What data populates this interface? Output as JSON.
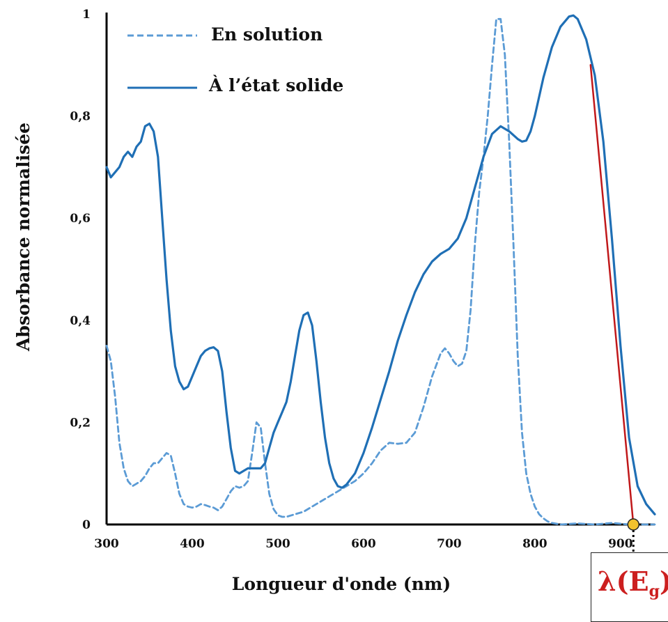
{
  "chart_data": {
    "type": "line",
    "title": "",
    "xlabel": "Longueur d'onde (nm)",
    "ylabel": "Absorbance normalisée",
    "xlim": [
      300,
      940
    ],
    "ylim": [
      0,
      1
    ],
    "x_ticks": [
      300,
      400,
      500,
      600,
      700,
      800,
      900
    ],
    "y_ticks": [
      {
        "value": 0,
        "label": "0"
      },
      {
        "value": 0.2,
        "label": "0,2"
      },
      {
        "value": 0.4,
        "label": "0,4"
      },
      {
        "value": 0.6,
        "label": "0,6"
      },
      {
        "value": 0.8,
        "label": "0,8"
      },
      {
        "value": 1,
        "label": "1"
      }
    ],
    "grid": false,
    "legend_position": "top-left",
    "series": [
      {
        "name": "En solution",
        "style": "dashed",
        "color": "#5b9bd5",
        "points": [
          [
            300,
            0.35
          ],
          [
            305,
            0.32
          ],
          [
            310,
            0.25
          ],
          [
            315,
            0.16
          ],
          [
            320,
            0.11
          ],
          [
            325,
            0.085
          ],
          [
            330,
            0.075
          ],
          [
            335,
            0.08
          ],
          [
            340,
            0.085
          ],
          [
            345,
            0.095
          ],
          [
            350,
            0.11
          ],
          [
            355,
            0.12
          ],
          [
            360,
            0.12
          ],
          [
            365,
            0.13
          ],
          [
            370,
            0.14
          ],
          [
            375,
            0.135
          ],
          [
            380,
            0.1
          ],
          [
            385,
            0.06
          ],
          [
            390,
            0.04
          ],
          [
            395,
            0.035
          ],
          [
            400,
            0.033
          ],
          [
            405,
            0.035
          ],
          [
            410,
            0.04
          ],
          [
            415,
            0.038
          ],
          [
            420,
            0.035
          ],
          [
            425,
            0.033
          ],
          [
            430,
            0.028
          ],
          [
            435,
            0.035
          ],
          [
            440,
            0.05
          ],
          [
            445,
            0.065
          ],
          [
            450,
            0.075
          ],
          [
            455,
            0.072
          ],
          [
            460,
            0.075
          ],
          [
            465,
            0.085
          ],
          [
            470,
            0.14
          ],
          [
            475,
            0.2
          ],
          [
            480,
            0.19
          ],
          [
            485,
            0.12
          ],
          [
            490,
            0.06
          ],
          [
            495,
            0.03
          ],
          [
            500,
            0.018
          ],
          [
            505,
            0.015
          ],
          [
            510,
            0.015
          ],
          [
            520,
            0.02
          ],
          [
            530,
            0.025
          ],
          [
            540,
            0.035
          ],
          [
            550,
            0.045
          ],
          [
            560,
            0.055
          ],
          [
            570,
            0.065
          ],
          [
            580,
            0.075
          ],
          [
            590,
            0.085
          ],
          [
            600,
            0.1
          ],
          [
            610,
            0.12
          ],
          [
            620,
            0.145
          ],
          [
            630,
            0.16
          ],
          [
            640,
            0.158
          ],
          [
            650,
            0.16
          ],
          [
            660,
            0.18
          ],
          [
            670,
            0.23
          ],
          [
            680,
            0.29
          ],
          [
            690,
            0.335
          ],
          [
            695,
            0.345
          ],
          [
            700,
            0.335
          ],
          [
            705,
            0.32
          ],
          [
            710,
            0.31
          ],
          [
            715,
            0.315
          ],
          [
            720,
            0.34
          ],
          [
            725,
            0.42
          ],
          [
            730,
            0.55
          ],
          [
            735,
            0.65
          ],
          [
            740,
            0.72
          ],
          [
            745,
            0.8
          ],
          [
            750,
            0.9
          ],
          [
            755,
            0.99
          ],
          [
            760,
            0.99
          ],
          [
            765,
            0.92
          ],
          [
            770,
            0.75
          ],
          [
            775,
            0.55
          ],
          [
            780,
            0.33
          ],
          [
            785,
            0.18
          ],
          [
            790,
            0.1
          ],
          [
            795,
            0.06
          ],
          [
            800,
            0.035
          ],
          [
            805,
            0.02
          ],
          [
            810,
            0.012
          ],
          [
            815,
            0.006
          ],
          [
            820,
            0.003
          ],
          [
            830,
            0.0
          ],
          [
            850,
            0.002
          ],
          [
            870,
            0.0
          ],
          [
            890,
            0.003
          ],
          [
            910,
            0.0
          ],
          [
            940,
            0.0
          ]
        ]
      },
      {
        "name": "À l’état solide",
        "style": "solid",
        "color": "#1f6fb5",
        "points": [
          [
            300,
            0.7
          ],
          [
            305,
            0.68
          ],
          [
            310,
            0.69
          ],
          [
            315,
            0.7
          ],
          [
            320,
            0.72
          ],
          [
            325,
            0.73
          ],
          [
            330,
            0.72
          ],
          [
            335,
            0.74
          ],
          [
            340,
            0.75
          ],
          [
            345,
            0.78
          ],
          [
            350,
            0.785
          ],
          [
            355,
            0.77
          ],
          [
            360,
            0.72
          ],
          [
            365,
            0.6
          ],
          [
            370,
            0.48
          ],
          [
            375,
            0.38
          ],
          [
            380,
            0.31
          ],
          [
            385,
            0.28
          ],
          [
            390,
            0.265
          ],
          [
            395,
            0.27
          ],
          [
            400,
            0.29
          ],
          [
            405,
            0.31
          ],
          [
            410,
            0.33
          ],
          [
            415,
            0.34
          ],
          [
            420,
            0.345
          ],
          [
            425,
            0.347
          ],
          [
            430,
            0.34
          ],
          [
            435,
            0.3
          ],
          [
            440,
            0.22
          ],
          [
            445,
            0.15
          ],
          [
            450,
            0.105
          ],
          [
            455,
            0.1
          ],
          [
            460,
            0.105
          ],
          [
            465,
            0.11
          ],
          [
            470,
            0.11
          ],
          [
            475,
            0.11
          ],
          [
            480,
            0.11
          ],
          [
            485,
            0.12
          ],
          [
            490,
            0.15
          ],
          [
            495,
            0.18
          ],
          [
            500,
            0.2
          ],
          [
            505,
            0.22
          ],
          [
            510,
            0.24
          ],
          [
            515,
            0.28
          ],
          [
            520,
            0.33
          ],
          [
            525,
            0.38
          ],
          [
            530,
            0.41
          ],
          [
            535,
            0.415
          ],
          [
            540,
            0.39
          ],
          [
            545,
            0.32
          ],
          [
            550,
            0.24
          ],
          [
            555,
            0.17
          ],
          [
            560,
            0.12
          ],
          [
            565,
            0.09
          ],
          [
            570,
            0.075
          ],
          [
            575,
            0.072
          ],
          [
            580,
            0.078
          ],
          [
            590,
            0.1
          ],
          [
            600,
            0.14
          ],
          [
            610,
            0.19
          ],
          [
            620,
            0.245
          ],
          [
            630,
            0.3
          ],
          [
            640,
            0.36
          ],
          [
            650,
            0.41
          ],
          [
            660,
            0.455
          ],
          [
            670,
            0.49
          ],
          [
            680,
            0.515
          ],
          [
            690,
            0.53
          ],
          [
            700,
            0.54
          ],
          [
            710,
            0.56
          ],
          [
            720,
            0.6
          ],
          [
            730,
            0.66
          ],
          [
            740,
            0.72
          ],
          [
            750,
            0.765
          ],
          [
            760,
            0.78
          ],
          [
            770,
            0.77
          ],
          [
            780,
            0.755
          ],
          [
            785,
            0.75
          ],
          [
            790,
            0.752
          ],
          [
            795,
            0.77
          ],
          [
            800,
            0.8
          ],
          [
            810,
            0.875
          ],
          [
            820,
            0.935
          ],
          [
            830,
            0.975
          ],
          [
            840,
            0.995
          ],
          [
            845,
            0.997
          ],
          [
            850,
            0.99
          ],
          [
            860,
            0.95
          ],
          [
            870,
            0.88
          ],
          [
            880,
            0.75
          ],
          [
            890,
            0.56
          ],
          [
            900,
            0.35
          ],
          [
            910,
            0.17
          ],
          [
            920,
            0.075
          ],
          [
            930,
            0.04
          ],
          [
            940,
            0.02
          ]
        ]
      },
      {
        "name": "",
        "style": "tangent",
        "color": "#c0181a",
        "points": [
          [
            865,
            0.9
          ],
          [
            915,
            0.0
          ]
        ]
      }
    ],
    "markers": [
      {
        "x": 915,
        "y": 0,
        "color": "#f2c12e",
        "label": "λ(E_g)"
      }
    ]
  },
  "eg_label": {
    "main": "λ(E",
    "sub": "g",
    "close": ")"
  }
}
